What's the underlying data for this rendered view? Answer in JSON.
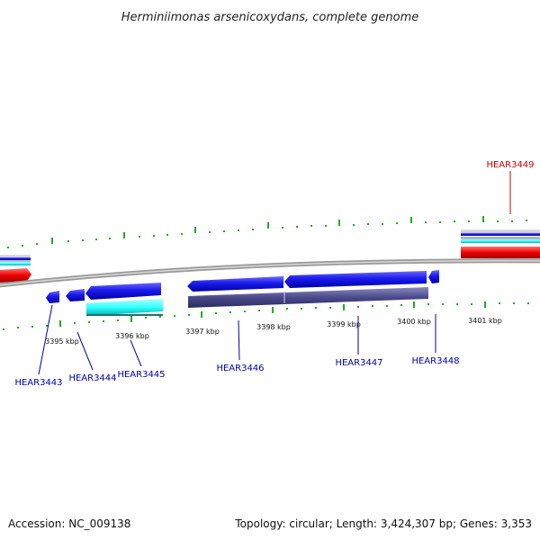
{
  "title": "Herminiimonas arsenicoxydans, complete genome",
  "footer": {
    "accession": "Accession: NC_009138",
    "summary": "Topology: circular; Length: 3,424,307 bp; Genes: 3,353"
  },
  "scale_labels": [
    "3395 kbp",
    "3396 kbp",
    "3397 kbp",
    "3398 kbp",
    "3399 kbp",
    "3400 kbp",
    "3401 kbp"
  ],
  "gene_labels": [
    {
      "name": "HEAR3443",
      "color": "#0000aa"
    },
    {
      "name": "HEAR3444",
      "color": "#0000aa"
    },
    {
      "name": "HEAR3445",
      "color": "#0000aa"
    },
    {
      "name": "HEAR3446",
      "color": "#0000aa"
    },
    {
      "name": "HEAR3447",
      "color": "#0000aa"
    },
    {
      "name": "HEAR3448",
      "color": "#0000aa"
    },
    {
      "name": "HEAR3449",
      "color": "#cc0000"
    }
  ],
  "colors": {
    "backbone": "#888888",
    "cds_forward": "#1a1aee",
    "cds_related": "#33ffff",
    "gene_dark": "#4a4a8c",
    "rna": "#ee0000",
    "ticks": "#22aa22"
  }
}
